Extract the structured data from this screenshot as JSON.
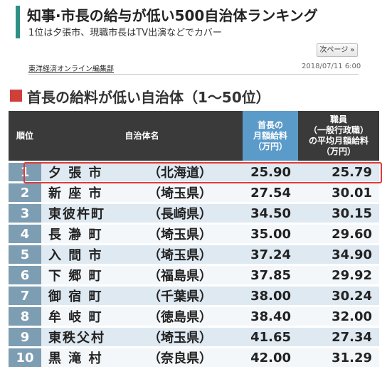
{
  "article": {
    "headline": "知事·市長の給与が低い500自治体ランキング",
    "subheadline": "1位は夕張市、現職市長はTV出演などでカバー",
    "next_page_label": "次ページ »",
    "byline": "東洋経済オンライン編集部",
    "timestamp": "2018/07/11 6:00"
  },
  "section": {
    "title": "首長の給料が低い自治体（1〜50位）"
  },
  "colors": {
    "accent_teal": "#2f8f84",
    "section_red": "#d0403a",
    "header_dark": "#3a3a3a",
    "header_blue": "#5b9bc9",
    "highlight_red": "#e03a3a"
  },
  "table": {
    "headers": {
      "rank": "順位",
      "municipality": "自治体名",
      "mayor_salary_l1": "首長の",
      "mayor_salary_l2": "月額給料",
      "mayor_salary_l3": "（万円）",
      "staff_salary_l1": "職員",
      "staff_salary_l2": "（一般行政職）",
      "staff_salary_l3": "の平均月額給料",
      "staff_salary_l4": "（万円）"
    },
    "rows": [
      {
        "rank": "1",
        "name": "夕 張 市",
        "pref": "（北海道）",
        "mayor": "25.90",
        "staff": "25.79"
      },
      {
        "rank": "2",
        "name": "新 座 市",
        "pref": "（埼玉県）",
        "mayor": "27.54",
        "staff": "30.01"
      },
      {
        "rank": "3",
        "name": "東彼杵町",
        "pref": "（長崎県）",
        "mayor": "34.50",
        "staff": "30.15"
      },
      {
        "rank": "4",
        "name": "長 瀞 町",
        "pref": "（埼玉県）",
        "mayor": "35.00",
        "staff": "29.60"
      },
      {
        "rank": "5",
        "name": "入 間 市",
        "pref": "（埼玉県）",
        "mayor": "37.24",
        "staff": "34.90"
      },
      {
        "rank": "6",
        "name": "下 郷 町",
        "pref": "（福島県）",
        "mayor": "37.85",
        "staff": "29.92"
      },
      {
        "rank": "7",
        "name": "御 宿 町",
        "pref": "（千葉県）",
        "mayor": "38.00",
        "staff": "30.24"
      },
      {
        "rank": "8",
        "name": "牟 岐 町",
        "pref": "（徳島県）",
        "mayor": "38.40",
        "staff": "32.00"
      },
      {
        "rank": "9",
        "name": "東秩父村",
        "pref": "（埼玉県）",
        "mayor": "41.65",
        "staff": "27.34"
      },
      {
        "rank": "10",
        "name": "黒 滝 村",
        "pref": "（奈良県）",
        "mayor": "42.00",
        "staff": "31.29"
      }
    ]
  }
}
